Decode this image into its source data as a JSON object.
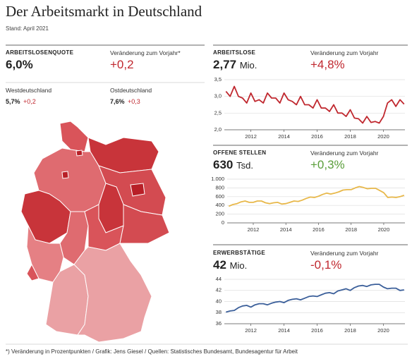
{
  "header": {
    "title": "Der Arbeitsmarkt in Deutschland",
    "stand": "Stand: April 2021"
  },
  "kpi": {
    "title": "ARBEITSLOSENQUOTE",
    "value": "6,0%",
    "change_label": "Veränderung zum Vorjahr*",
    "change": "+0,2",
    "west_label": "Westdeutschland",
    "west_value": "5,7%",
    "west_change": "+0,2",
    "east_label": "Ostdeutschland",
    "east_value": "7,6%",
    "east_change": "+0,3"
  },
  "chart_data": [
    {
      "type": "line",
      "title": "ARBEITSLOSE",
      "figure": "2,77",
      "unit": "Mio.",
      "change_label": "Veränderung zum Vorjahr",
      "change": "+4,8%",
      "change_color": "#c0282f",
      "color": "#c0282f",
      "grid": true,
      "x": [
        2010.5,
        2010.75,
        2011,
        2011.25,
        2011.5,
        2011.75,
        2012,
        2012.25,
        2012.5,
        2012.75,
        2013,
        2013.25,
        2013.5,
        2013.75,
        2014,
        2014.25,
        2014.5,
        2014.75,
        2015,
        2015.25,
        2015.5,
        2015.75,
        2016,
        2016.25,
        2016.5,
        2016.75,
        2017,
        2017.25,
        2017.5,
        2017.75,
        2018,
        2018.25,
        2018.5,
        2018.75,
        2019,
        2019.25,
        2019.5,
        2019.75,
        2020,
        2020.25,
        2020.5,
        2020.75,
        2021,
        2021.25
      ],
      "values": [
        3.15,
        3.0,
        3.3,
        3.0,
        2.95,
        2.8,
        3.1,
        2.85,
        2.9,
        2.8,
        3.1,
        2.95,
        2.95,
        2.8,
        3.1,
        2.9,
        2.85,
        2.75,
        3.0,
        2.75,
        2.75,
        2.65,
        2.9,
        2.65,
        2.65,
        2.55,
        2.75,
        2.5,
        2.5,
        2.4,
        2.6,
        2.35,
        2.33,
        2.2,
        2.4,
        2.22,
        2.25,
        2.2,
        2.4,
        2.8,
        2.9,
        2.7,
        2.9,
        2.77
      ],
      "xlim": [
        2010.4,
        2021.3
      ],
      "xticks": [
        2012,
        2014,
        2016,
        2018,
        2020
      ],
      "ylim": [
        2.0,
        3.5
      ],
      "yticks": [
        {
          "value": 2.0,
          "label": "2,0"
        },
        {
          "value": 2.5,
          "label": "2,5"
        },
        {
          "value": 3.0,
          "label": "3,0"
        },
        {
          "value": 3.5,
          "label": "3,5"
        }
      ]
    },
    {
      "type": "line",
      "title": "OFFENE STELLEN",
      "figure": "630",
      "unit": "Tsd.",
      "change_label": "Veränderung zum Vorjahr",
      "change": "+0,3%",
      "change_color": "#5a9e3a",
      "color": "#e8b84a",
      "grid": true,
      "x": [
        2010.5,
        2010.75,
        2011,
        2011.25,
        2011.5,
        2011.75,
        2012,
        2012.25,
        2012.5,
        2012.75,
        2013,
        2013.25,
        2013.5,
        2013.75,
        2014,
        2014.25,
        2014.5,
        2014.75,
        2015,
        2015.25,
        2015.5,
        2015.75,
        2016,
        2016.25,
        2016.5,
        2016.75,
        2017,
        2017.25,
        2017.5,
        2017.75,
        2018,
        2018.25,
        2018.5,
        2018.75,
        2019,
        2019.25,
        2019.5,
        2019.75,
        2020,
        2020.25,
        2020.5,
        2020.75,
        2021,
        2021.25
      ],
      "values": [
        380,
        420,
        440,
        480,
        500,
        470,
        470,
        500,
        500,
        460,
        440,
        460,
        470,
        430,
        440,
        470,
        500,
        490,
        520,
        560,
        590,
        580,
        610,
        650,
        680,
        660,
        680,
        710,
        750,
        760,
        760,
        800,
        830,
        810,
        780,
        790,
        790,
        740,
        690,
        580,
        590,
        580,
        600,
        630
      ],
      "xlim": [
        2010.4,
        2021.3
      ],
      "xticks": [
        2012,
        2014,
        2016,
        2018,
        2020
      ],
      "ylim": [
        0,
        1000
      ],
      "yticks": [
        0,
        200,
        400,
        600,
        800,
        {
          "value": 1000,
          "label": "1.000"
        }
      ]
    },
    {
      "type": "line",
      "title": "ERWERBSTÄTIGE",
      "figure": "42",
      "unit": "Mio.",
      "change_label": "Veränderung zum Vorjahr",
      "change": "-0,1%",
      "change_color": "#c0282f",
      "color": "#3b5f9a",
      "grid": true,
      "x": [
        2010.5,
        2010.75,
        2011,
        2011.25,
        2011.5,
        2011.75,
        2012,
        2012.25,
        2012.5,
        2012.75,
        2013,
        2013.25,
        2013.5,
        2013.75,
        2014,
        2014.25,
        2014.5,
        2014.75,
        2015,
        2015.25,
        2015.5,
        2015.75,
        2016,
        2016.25,
        2016.5,
        2016.75,
        2017,
        2017.25,
        2017.5,
        2017.75,
        2018,
        2018.25,
        2018.5,
        2018.75,
        2019,
        2019.25,
        2019.5,
        2019.75,
        2020,
        2020.25,
        2020.5,
        2020.75,
        2021,
        2021.25
      ],
      "values": [
        38.1,
        38.3,
        38.4,
        38.9,
        39.2,
        39.3,
        39.0,
        39.4,
        39.6,
        39.6,
        39.4,
        39.7,
        39.9,
        40.0,
        39.8,
        40.2,
        40.4,
        40.5,
        40.3,
        40.6,
        40.9,
        41.0,
        40.9,
        41.2,
        41.5,
        41.6,
        41.4,
        41.9,
        42.1,
        42.3,
        42.0,
        42.5,
        42.8,
        42.9,
        42.7,
        43.0,
        43.1,
        43.1,
        42.6,
        42.3,
        42.4,
        42.4,
        42.0,
        42.1
      ],
      "xlim": [
        2010.4,
        2021.3
      ],
      "xticks": [
        2012,
        2014,
        2016,
        2018,
        2020
      ],
      "ylim": [
        36,
        44
      ],
      "yticks": [
        36,
        38,
        40,
        42,
        44
      ]
    }
  ],
  "footer": "*) Veränderung in Prozentpunkten / Grafik: Jens Giesel / Quellen: Statistisches Bundesamt, Bundesagentur für Arbeit"
}
